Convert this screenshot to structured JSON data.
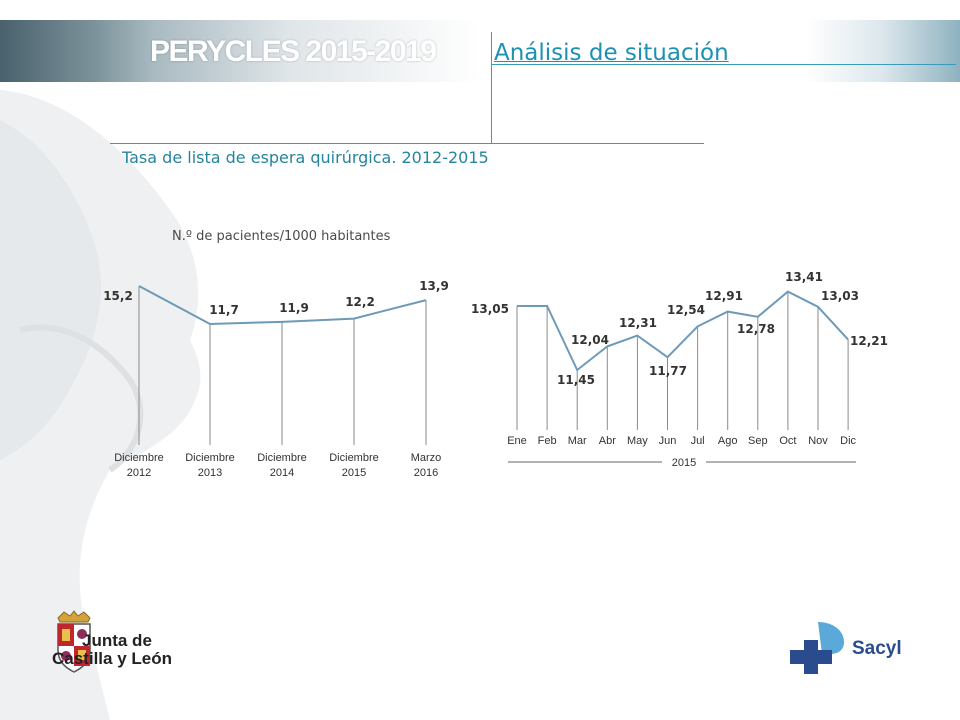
{
  "header": {
    "brand": "PERYCLES 2015-2019",
    "section_title": "Análisis de situación"
  },
  "subtitle": "Tasa de lista de espera quirúrgica. 2012-2015",
  "units_label": "N.º de pacientes/1000 habitantes",
  "colors": {
    "accent": "#1d90b3",
    "line": "#6e9ab8",
    "text": "#333333"
  },
  "chart_data": [
    {
      "type": "line",
      "categories": [
        [
          "Diciembre",
          "2012"
        ],
        [
          "Diciembre",
          "2013"
        ],
        [
          "Diciembre",
          "2014"
        ],
        [
          "Diciembre",
          "2015"
        ],
        [
          "Marzo",
          "2016"
        ]
      ],
      "values": [
        15.2,
        11.7,
        11.9,
        12.2,
        13.9
      ],
      "value_labels": [
        "15,2",
        "11,7",
        "11,9",
        "12,2",
        "13,9"
      ],
      "ylim": [
        0,
        15.2
      ]
    },
    {
      "type": "line",
      "categories": [
        "Ene",
        "Feb",
        "Mar",
        "Abr",
        "May",
        "Jun",
        "Jul",
        "Ago",
        "Sep",
        "Oct",
        "Nov",
        "Dic"
      ],
      "values": [
        13.05,
        13.05,
        11.45,
        12.04,
        12.31,
        11.77,
        12.54,
        12.91,
        12.78,
        13.41,
        13.03,
        12.21
      ],
      "value_labels": [
        "13,05",
        "",
        "11,45",
        "12,04",
        "12,31",
        "11,77",
        "12,54",
        "12,91",
        "12,78",
        "13,41",
        "13,03",
        "12,21"
      ],
      "xlabel": "2015"
    }
  ],
  "logos": {
    "jcyl_line1": "Junta de",
    "jcyl_line2": "Castilla y León",
    "sacyl": "Sacyl"
  }
}
